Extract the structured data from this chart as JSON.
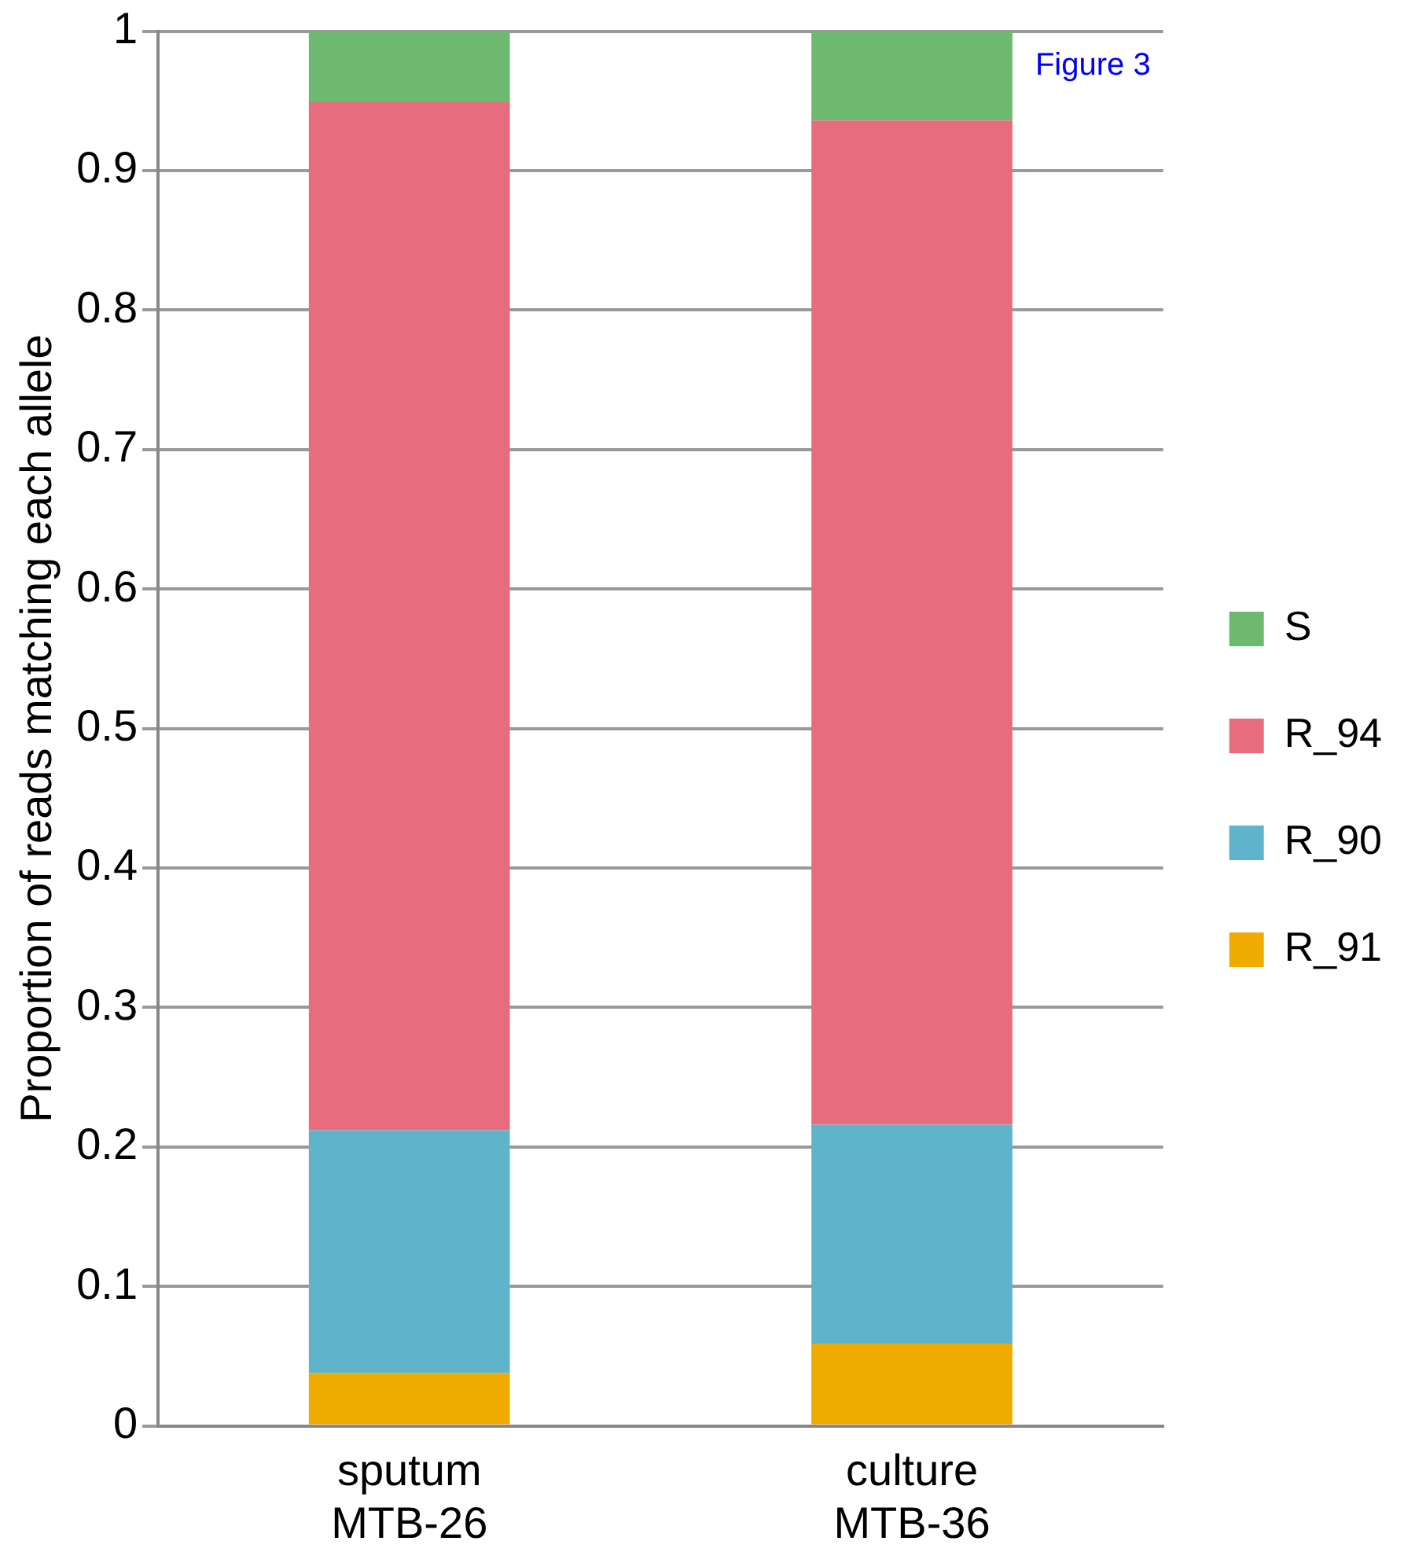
{
  "chart_data": {
    "type": "bar",
    "ylabel": "Proportion of reads matching each allele",
    "categories": [
      "sputum\nMTB-26",
      "culture\nMTB-36"
    ],
    "stacked": true,
    "series": [
      {
        "name": "R_91",
        "color": "#f0ab00",
        "values": [
          0.038,
          0.059
        ]
      },
      {
        "name": "R_90",
        "color": "#5fb4cc",
        "values": [
          0.174,
          0.157
        ]
      },
      {
        "name": "R_94",
        "color": "#e76c7d",
        "values": [
          0.737,
          0.72
        ]
      },
      {
        "name": "S",
        "color": "#6db96f",
        "values": [
          0.051,
          0.064
        ]
      }
    ],
    "ylim": [
      0,
      1
    ],
    "yticks": [
      0,
      0.1,
      0.2,
      0.3,
      0.4,
      0.5,
      0.6,
      0.7,
      0.8,
      0.9,
      1
    ],
    "grid": "y",
    "legend": "right",
    "annotations": [
      "Figure 3"
    ]
  }
}
